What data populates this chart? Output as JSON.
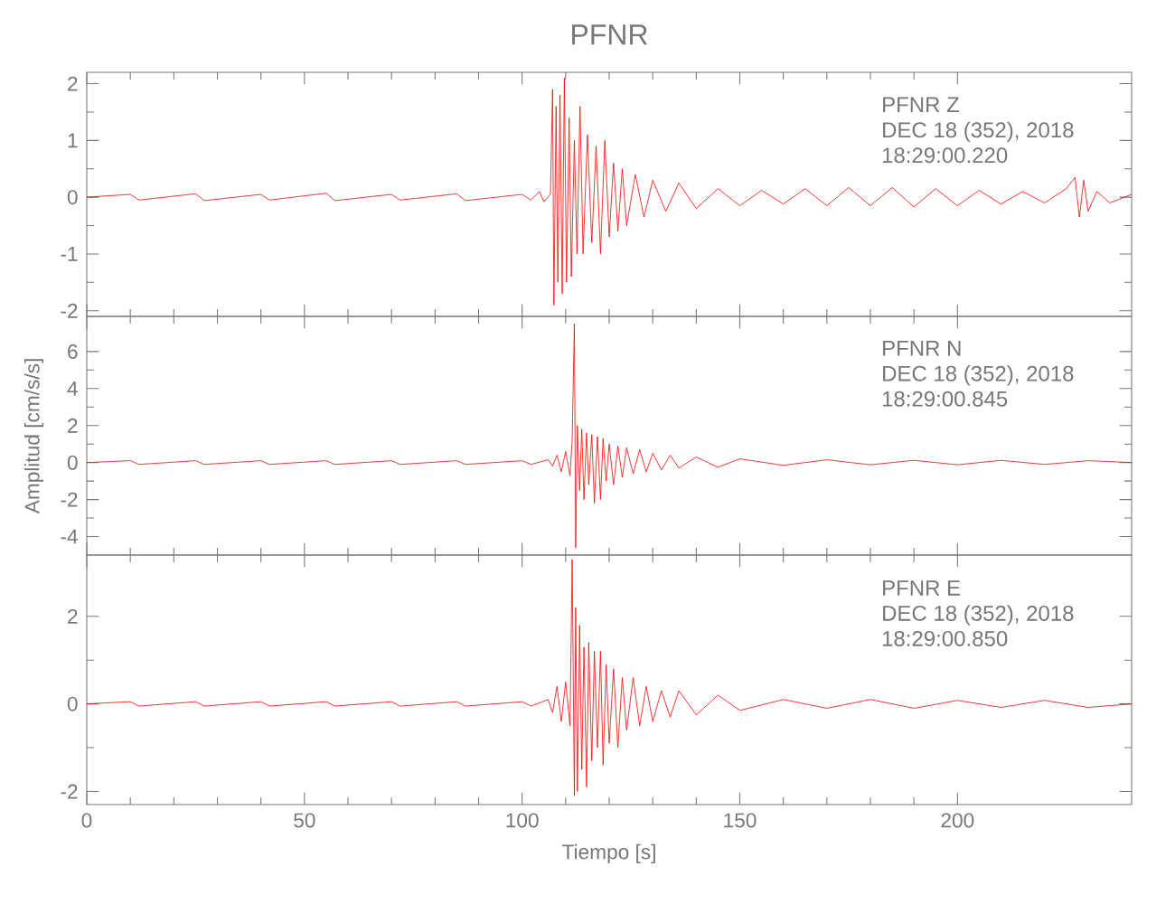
{
  "chart_data": [
    {
      "type": "line",
      "title": "PFNR",
      "x": [
        0,
        10,
        12,
        25,
        27,
        40,
        42,
        55,
        57,
        70,
        72,
        85,
        87,
        100,
        102,
        104,
        105,
        106.5,
        107,
        107.3,
        107.8,
        108.2,
        108.7,
        109.2,
        109.7,
        110.2,
        110.8,
        111.3,
        112,
        112.6,
        113.3,
        114,
        115,
        116,
        117,
        118,
        119,
        120,
        121,
        122,
        123,
        124,
        126,
        128,
        130,
        133,
        136,
        140,
        145,
        150,
        155,
        160,
        165,
        170,
        175,
        180,
        185,
        190,
        195,
        200,
        205,
        210,
        215,
        220,
        225,
        227,
        228,
        229,
        230,
        232,
        235,
        240
      ],
      "series": [
        {
          "color": "#ff0000",
          "values": [
            0,
            0.05,
            -0.05,
            0.06,
            -0.06,
            0.05,
            -0.05,
            0.07,
            -0.06,
            0.05,
            -0.05,
            0.06,
            -0.06,
            0.05,
            -0.05,
            0.1,
            -0.08,
            0.05,
            1.9,
            -1.9,
            1.6,
            -1.5,
            1.8,
            -1.7,
            2.1,
            -1.5,
            1.4,
            -1.4,
            1.0,
            -1.0,
            1.6,
            -1.0,
            1.1,
            -0.8,
            0.9,
            -1.0,
            1.0,
            -0.7,
            0.6,
            -0.6,
            0.5,
            -0.5,
            0.4,
            -0.35,
            0.3,
            -0.25,
            0.25,
            -0.2,
            0.15,
            -0.15,
            0.12,
            -0.12,
            0.15,
            -0.15,
            0.17,
            -0.15,
            0.17,
            -0.17,
            0.15,
            -0.15,
            0.12,
            -0.12,
            0.1,
            -0.1,
            0.15,
            0.35,
            -0.35,
            0.3,
            -0.25,
            0.1,
            -0.1,
            0.05
          ]
        }
      ],
      "xlim": [
        0,
        240
      ],
      "ylim": [
        -2.1,
        2.2
      ],
      "xticks": [
        0,
        50,
        100,
        150,
        200
      ],
      "yticks": [
        -2,
        -1,
        0,
        1,
        2
      ],
      "tick_labels": "y",
      "annotations": [
        "PFNR   Z",
        "DEC 18 (352), 2018",
        "18:29:00.220"
      ]
    },
    {
      "type": "line",
      "ylabel": "Amplitud [cm/s/s]",
      "x": [
        0,
        10,
        12,
        25,
        27,
        40,
        42,
        55,
        57,
        70,
        72,
        85,
        87,
        100,
        102,
        106,
        107,
        108,
        109,
        110,
        111,
        111.5,
        112,
        112.3,
        112.7,
        113.2,
        113.7,
        114.2,
        114.8,
        115.3,
        116,
        116.6,
        117.3,
        118,
        118.6,
        119.3,
        120,
        121,
        122,
        123,
        124,
        125.5,
        127,
        128.5,
        130,
        132,
        134,
        136,
        140,
        145,
        150,
        160,
        170,
        180,
        190,
        200,
        210,
        220,
        230,
        240
      ],
      "series": [
        {
          "color": "#ff0000",
          "values": [
            0,
            0.1,
            -0.1,
            0.1,
            -0.1,
            0.1,
            -0.1,
            0.1,
            -0.1,
            0.1,
            -0.1,
            0.1,
            -0.1,
            0.1,
            -0.1,
            0.15,
            -0.2,
            0.4,
            -0.5,
            0.6,
            -0.7,
            1.2,
            7.5,
            -4.6,
            2.0,
            -1.5,
            1.8,
            -2.0,
            1.6,
            -1.2,
            1.5,
            -2.2,
            1.4,
            -2.0,
            1.3,
            -1.0,
            1.0,
            -1.2,
            0.9,
            -0.8,
            0.8,
            -0.6,
            0.7,
            -0.5,
            0.5,
            -0.4,
            0.4,
            -0.3,
            0.3,
            -0.25,
            0.2,
            -0.15,
            0.15,
            -0.12,
            0.12,
            -0.12,
            0.12,
            -0.1,
            0.1,
            0
          ]
        }
      ],
      "xlim": [
        0,
        240
      ],
      "ylim": [
        -5,
        7.9
      ],
      "xticks": [
        0,
        50,
        100,
        150,
        200
      ],
      "yticks": [
        -4,
        -2,
        0,
        2,
        4,
        6
      ],
      "tick_labels": "y",
      "annotations": [
        "PFNR   N",
        "DEC 18 (352), 2018",
        "18:29:00.845"
      ]
    },
    {
      "type": "line",
      "xlabel": "Tiempo [s]",
      "x": [
        0,
        10,
        12,
        25,
        27,
        40,
        42,
        55,
        57,
        70,
        72,
        85,
        87,
        100,
        102,
        106,
        107,
        108,
        109,
        110,
        111,
        111.5,
        112,
        112.3,
        112.7,
        113.2,
        113.7,
        114.2,
        114.8,
        115.3,
        116,
        116.6,
        117.3,
        118,
        118.6,
        119.3,
        120,
        121,
        122,
        123,
        124,
        125.5,
        127,
        128.5,
        130,
        132,
        134,
        136,
        140,
        145,
        150,
        160,
        170,
        180,
        190,
        200,
        210,
        220,
        230,
        240
      ],
      "series": [
        {
          "color": "#ff0000",
          "values": [
            0,
            0.05,
            -0.05,
            0.05,
            -0.05,
            0.05,
            -0.05,
            0.05,
            -0.05,
            0.05,
            -0.05,
            0.05,
            -0.05,
            0.05,
            -0.05,
            0.1,
            -0.2,
            0.4,
            -0.4,
            0.5,
            -0.5,
            3.3,
            -2.1,
            2.2,
            -2.0,
            1.8,
            -1.5,
            1.3,
            -1.9,
            1.4,
            -1.3,
            1.2,
            -1.0,
            1.2,
            -1.4,
            0.9,
            -0.9,
            0.8,
            -1.0,
            0.6,
            -0.6,
            0.6,
            -0.5,
            0.4,
            -0.4,
            0.3,
            -0.3,
            0.3,
            -0.25,
            0.2,
            -0.15,
            0.1,
            -0.1,
            0.1,
            -0.1,
            0.08,
            -0.08,
            0.08,
            -0.08,
            0
          ]
        }
      ],
      "xlim": [
        0,
        240
      ],
      "ylim": [
        -2.3,
        3.4
      ],
      "xticks": [
        0,
        50,
        100,
        150,
        200
      ],
      "yticks": [
        -2,
        0,
        2
      ],
      "annotations": [
        "PFNR   E",
        "DEC 18 (352), 2018",
        "18:29:00.850"
      ]
    }
  ]
}
